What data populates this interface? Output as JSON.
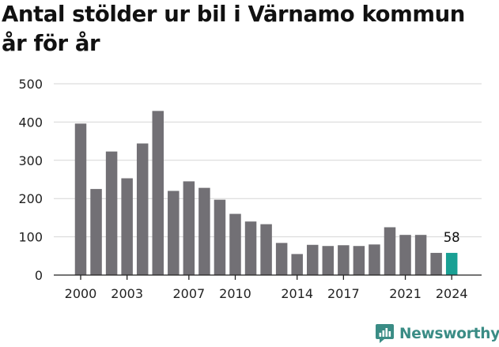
{
  "title": "Antal stölder ur bil i Värnamo kommun år för år",
  "brand": {
    "name": "Newsworthy",
    "logo_icon": "newsworthy-chart-logo-icon",
    "color": "#3a8c85"
  },
  "colors": {
    "bar": "#727075",
    "highlight": "#19a094",
    "grid": "#d6d6d6",
    "axis": "#222222",
    "text": "#222222"
  },
  "chart_data": {
    "type": "bar",
    "title": "Antal stölder ur bil i Värnamo kommun år för år",
    "xlabel": "",
    "ylabel": "",
    "ylim": [
      0,
      500
    ],
    "yticks": [
      0,
      100,
      200,
      300,
      400,
      500
    ],
    "grid": true,
    "categories": [
      2000,
      2001,
      2002,
      2003,
      2004,
      2005,
      2006,
      2007,
      2008,
      2009,
      2010,
      2011,
      2012,
      2013,
      2014,
      2015,
      2016,
      2017,
      2018,
      2019,
      2020,
      2021,
      2022,
      2023,
      2024
    ],
    "values": [
      396,
      225,
      323,
      253,
      344,
      429,
      220,
      245,
      228,
      197,
      160,
      140,
      133,
      84,
      55,
      79,
      76,
      78,
      76,
      80,
      125,
      105,
      105,
      58,
      58
    ],
    "xtick_labels": [
      "2000",
      "2003",
      "2007",
      "2010",
      "2014",
      "2017",
      "2021",
      "2024"
    ],
    "highlight_index": 24,
    "annotations": [
      {
        "category": 2024,
        "text": "58"
      }
    ]
  }
}
